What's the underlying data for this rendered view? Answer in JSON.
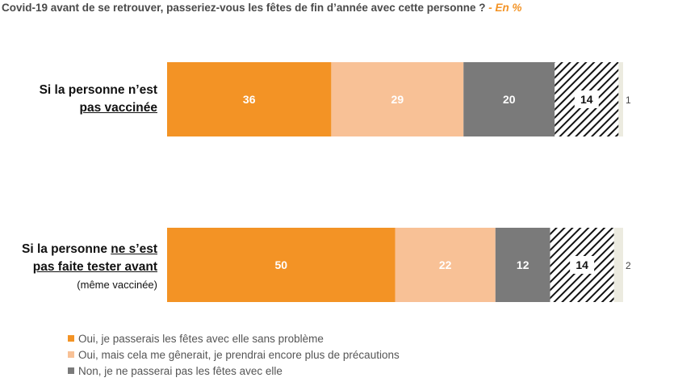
{
  "title": {
    "text": "Covid-19 avant de se retrouver, passeriez-vous les fêtes de fin d’année avec cette personne ?",
    "unit": "- En %"
  },
  "colors": {
    "oui_sans": "#f39325",
    "oui_mais": "#f8c196",
    "non": "#7a7a7a",
    "hatch": "#111111",
    "other": "#ecebe0"
  },
  "categories": [
    {
      "line1": "Si la personne n’est",
      "line2": "pas vaccinée",
      "sub": ""
    },
    {
      "line1_pre": "Si la personne ",
      "line1_u": "ne s’est",
      "line2": "pas faite tester avant",
      "sub": "(même vaccinée)"
    }
  ],
  "legend": [
    {
      "label": "Oui, je passerais les fêtes avec elle sans problème"
    },
    {
      "label": "Oui, mais cela me gênerait, je prendrai encore plus de précautions"
    },
    {
      "label": "Non, je ne passerai pas les fêtes avec elle"
    }
  ],
  "chart_data": {
    "type": "bar",
    "orientation": "horizontal",
    "stacked": true,
    "categories": [
      "Si la personne n’est pas vaccinée",
      "Si la personne ne s’est pas faite tester avant (même vaccinée)"
    ],
    "series": [
      {
        "name": "Oui, je passerais les fêtes avec elle sans problème",
        "values": [
          36,
          50
        ],
        "color": "#f39325",
        "label_color": "#ffffff"
      },
      {
        "name": "Oui, mais cela me gênerait, je prendrai encore plus de précautions",
        "values": [
          29,
          22
        ],
        "color": "#f8c196",
        "label_color": "#ffffff"
      },
      {
        "name": "Non, je ne passerai pas les fêtes avec elle",
        "values": [
          20,
          12
        ],
        "color": "#7a7a7a",
        "label_color": "#ffffff"
      },
      {
        "values": [
          14,
          14
        ],
        "color": "hatch",
        "label_color": "#111111"
      },
      {
        "values": [
          1,
          2
        ],
        "color": "#ecebe0",
        "label_color": "#444444",
        "label_outside": true
      }
    ],
    "xlim": [
      0,
      100
    ],
    "legend_position": "bottom"
  }
}
